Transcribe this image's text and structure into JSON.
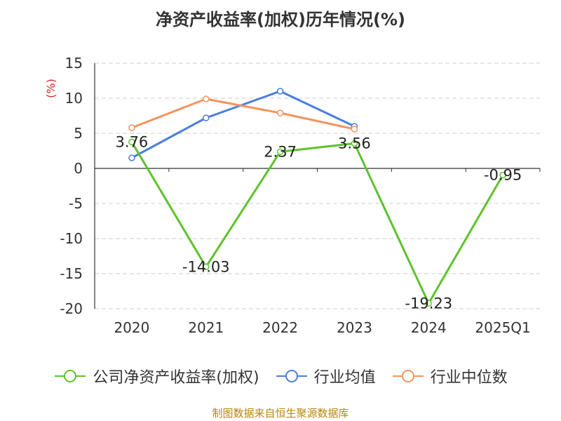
{
  "chart_data": {
    "type": "line",
    "title": "净资产收益率(加权)历年情况(%)",
    "ylabel": "(%)",
    "categories": [
      "2020",
      "2021",
      "2022",
      "2023",
      "2024",
      "2025Q1"
    ],
    "ylim": [
      -20,
      15
    ],
    "yticks": [
      15,
      10,
      5,
      0,
      -5,
      -10,
      -15,
      -20
    ],
    "grid": true,
    "legend_position": "bottom",
    "series": [
      {
        "name": "公司净资产收益率(加权)",
        "color": "#5ec22b",
        "values": [
          3.76,
          -14.03,
          2.37,
          3.56,
          -19.23,
          -0.95
        ],
        "labels": true
      },
      {
        "name": "行业均值",
        "color": "#4a7fdb",
        "values": [
          1.5,
          7.2,
          11.0,
          6.0,
          null,
          null
        ],
        "labels": false
      },
      {
        "name": "行业中位数",
        "color": "#f5935c",
        "values": [
          5.8,
          9.9,
          7.9,
          5.6,
          null,
          null
        ],
        "labels": false
      }
    ],
    "data_labels": [
      "3.76",
      "-14.03",
      "2.37",
      "3.56",
      "-19.23",
      "-0.95"
    ]
  },
  "source": "制图数据来自恒生聚源数据库"
}
